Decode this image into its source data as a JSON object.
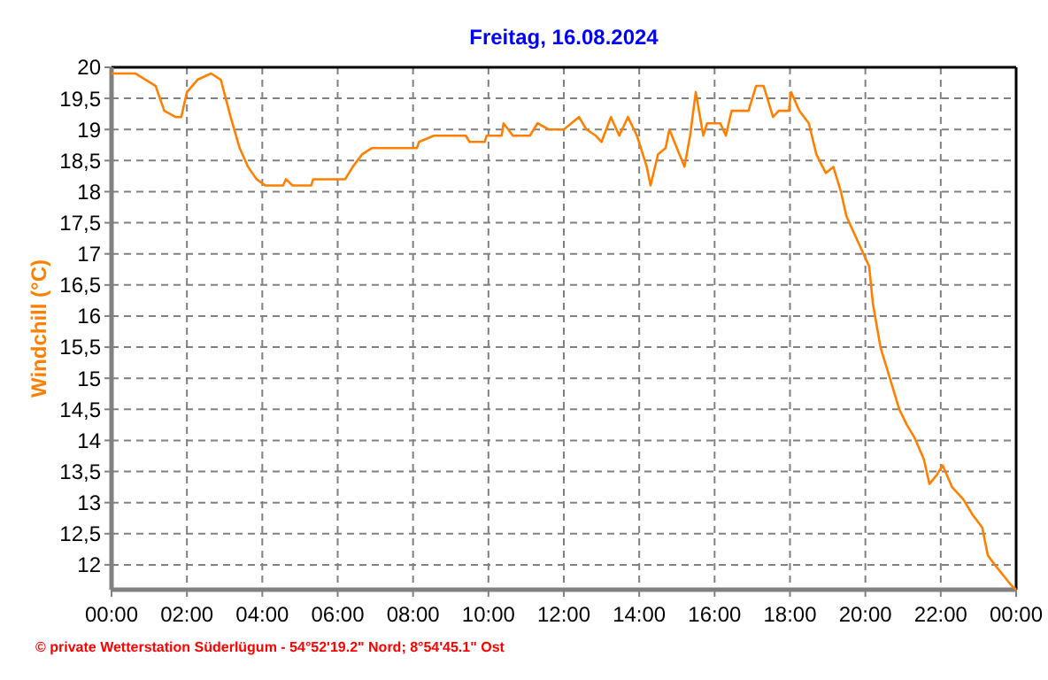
{
  "chart_data": {
    "type": "line",
    "title": "Freitag, 16.08.2024",
    "ylabel": "Windchill  (°C)",
    "annotations": [
      "© private Wetterstation Süderlügum - 54°52'19.2\" Nord; 8°54'45.1\" Ost"
    ],
    "x": [
      0,
      0.64,
      1.17,
      1.4,
      1.7,
      1.85,
      2.0,
      2.28,
      2.64,
      2.9,
      3.16,
      3.4,
      3.62,
      3.85,
      4.08,
      4.55,
      4.63,
      4.8,
      5.3,
      5.35,
      6.2,
      6.4,
      6.65,
      6.9,
      8.1,
      8.16,
      8.55,
      9.4,
      9.5,
      9.9,
      9.95,
      10.35,
      10.4,
      10.65,
      11.1,
      11.3,
      11.6,
      12.0,
      12.4,
      12.6,
      12.85,
      13.0,
      13.25,
      13.47,
      13.7,
      13.94,
      14.2,
      14.3,
      14.5,
      14.7,
      14.8,
      15.0,
      15.2,
      15.35,
      15.5,
      15.7,
      15.8,
      16.15,
      16.3,
      16.45,
      16.6,
      16.9,
      17.1,
      17.3,
      17.55,
      17.7,
      17.97,
      18.03,
      18.25,
      18.5,
      18.7,
      18.95,
      19.15,
      19.35,
      19.5,
      19.8,
      20.1,
      20.2,
      20.4,
      20.65,
      20.9,
      21.1,
      21.3,
      21.55,
      21.7,
      21.9,
      22.05,
      22.3,
      22.6,
      22.85,
      23.1,
      23.25,
      23.5,
      23.7,
      23.9,
      24
    ],
    "series": [
      {
        "color": "#ff8000",
        "values": [
          19.9,
          19.9,
          19.7,
          19.3,
          19.2,
          19.2,
          19.6,
          19.8,
          19.9,
          19.8,
          19.2,
          18.7,
          18.4,
          18.2,
          18.1,
          18.1,
          18.2,
          18.1,
          18.1,
          18.2,
          18.2,
          18.4,
          18.6,
          18.7,
          18.7,
          18.8,
          18.9,
          18.9,
          18.8,
          18.8,
          18.9,
          18.9,
          19.1,
          18.9,
          18.9,
          19.1,
          19.0,
          19.0,
          19.2,
          19.0,
          18.9,
          18.8,
          19.2,
          18.9,
          19.2,
          18.9,
          18.4,
          18.1,
          18.6,
          18.7,
          19.0,
          18.7,
          18.4,
          18.9,
          19.6,
          18.9,
          19.1,
          19.1,
          18.9,
          19.3,
          19.3,
          19.3,
          19.7,
          19.7,
          19.2,
          19.3,
          19.3,
          19.6,
          19.3,
          19.1,
          18.6,
          18.3,
          18.4,
          18.0,
          17.6,
          17.2,
          16.8,
          16.2,
          15.5,
          15.0,
          14.5,
          14.25,
          14.05,
          13.7,
          13.3,
          13.45,
          13.6,
          13.25,
          13.05,
          12.8,
          12.6,
          12.15,
          11.95,
          11.8,
          11.65,
          11.6
        ]
      }
    ],
    "xlim": [
      0,
      24
    ],
    "xticks": [
      {
        "value": 0,
        "label": "00:00"
      },
      {
        "value": 2,
        "label": "02:00"
      },
      {
        "value": 4,
        "label": "04:00"
      },
      {
        "value": 6,
        "label": "06:00"
      },
      {
        "value": 8,
        "label": "08:00"
      },
      {
        "value": 10,
        "label": "10:00"
      },
      {
        "value": 12,
        "label": "12:00"
      },
      {
        "value": 14,
        "label": "14:00"
      },
      {
        "value": 16,
        "label": "16:00"
      },
      {
        "value": 18,
        "label": "18:00"
      },
      {
        "value": 20,
        "label": "20:00"
      },
      {
        "value": 22,
        "label": "22:00"
      },
      {
        "value": 24,
        "label": "00:00"
      }
    ],
    "ylim": [
      11.6,
      20
    ],
    "yticks": [
      {
        "value": 12,
        "label": "12"
      },
      {
        "value": 12.5,
        "label": "12,5"
      },
      {
        "value": 13,
        "label": "13"
      },
      {
        "value": 13.5,
        "label": "13,5"
      },
      {
        "value": 14,
        "label": "14"
      },
      {
        "value": 14.5,
        "label": "14,5"
      },
      {
        "value": 15,
        "label": "15"
      },
      {
        "value": 15.5,
        "label": "15,5"
      },
      {
        "value": 16,
        "label": "16"
      },
      {
        "value": 16.5,
        "label": "16,5"
      },
      {
        "value": 17,
        "label": "17"
      },
      {
        "value": 17.5,
        "label": "17,5"
      },
      {
        "value": 18,
        "label": "18"
      },
      {
        "value": 18.5,
        "label": "18,5"
      },
      {
        "value": 19,
        "label": "19"
      },
      {
        "value": 19.5,
        "label": "19,5"
      },
      {
        "value": 20,
        "label": "20"
      }
    ],
    "grid": true,
    "marker": "none",
    "line_style": "solid"
  }
}
